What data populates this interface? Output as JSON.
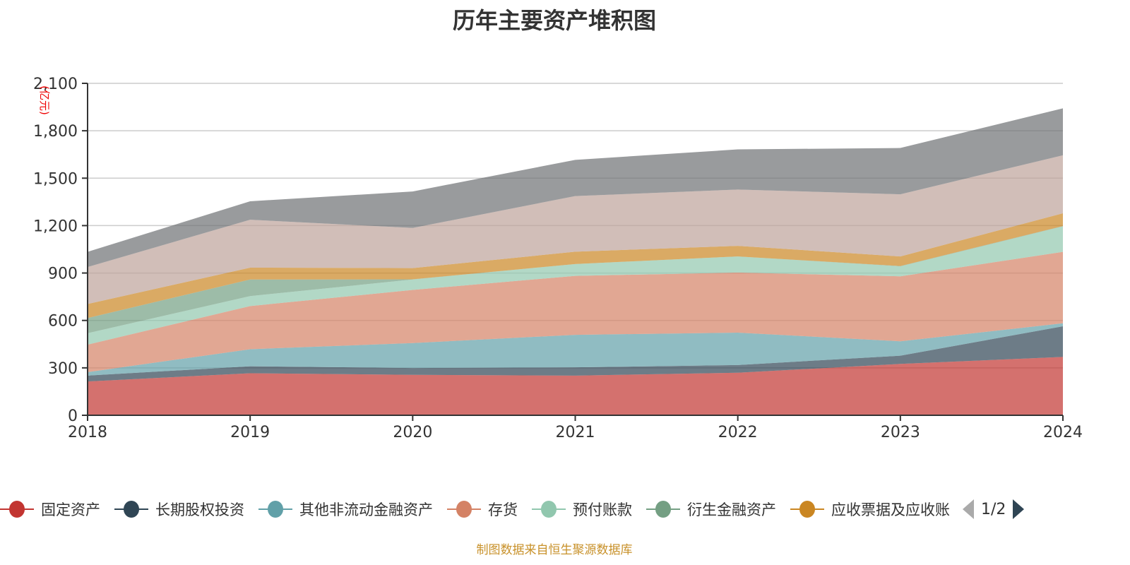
{
  "chart_data": {
    "type": "area",
    "stacked": true,
    "title": "历年主要资产堆积图",
    "ylabel": "(亿元)",
    "xlabel": "",
    "x": [
      "2018",
      "2019",
      "2020",
      "2021",
      "2022",
      "2023",
      "2024"
    ],
    "ylim": [
      0,
      2100
    ],
    "yticks": [
      0,
      300,
      600,
      900,
      1200,
      1500,
      1800,
      2100
    ],
    "ytick_labels": [
      "0",
      "300",
      "600",
      "900",
      "1,200",
      "1,500",
      "1,800",
      "2,100"
    ],
    "grid": true,
    "legend_position": "bottom",
    "series": [
      {
        "name": "固定资产",
        "color": "#c23531",
        "values": [
          214,
          266,
          256,
          251,
          269,
          325,
          369
        ]
      },
      {
        "name": "长期股权投资",
        "color": "#2f4554",
        "values": [
          37,
          44,
          43,
          52,
          49,
          52,
          194
        ]
      },
      {
        "name": "其他非流动金融资产",
        "color": "#61a0a8",
        "values": [
          22,
          108,
          158,
          206,
          205,
          91,
          19
        ]
      },
      {
        "name": "存货",
        "color": "#d48265",
        "values": [
          174,
          273,
          336,
          373,
          380,
          411,
          452
        ]
      },
      {
        "name": "预付账款",
        "color": "#91c7ae",
        "values": [
          72,
          63,
          66,
          75,
          102,
          63,
          161
        ]
      },
      {
        "name": "衍生金融资产",
        "color": "#749f83",
        "values": [
          96,
          105,
          1,
          0,
          0,
          2,
          2
        ]
      },
      {
        "name": "应收票据及应收账",
        "color": "#ca8622",
        "values": [
          89,
          75,
          71,
          78,
          67,
          61,
          81
        ]
      },
      {
        "color": "#bda29a",
        "values": [
          234,
          303,
          254,
          352,
          356,
          393,
          367
        ]
      },
      {
        "color": "#6e7074",
        "values": [
          96,
          117,
          231,
          229,
          254,
          293,
          297
        ]
      }
    ]
  },
  "legend": {
    "page_info": "1/2"
  },
  "source": "制图数据来自恒生聚源数据库"
}
